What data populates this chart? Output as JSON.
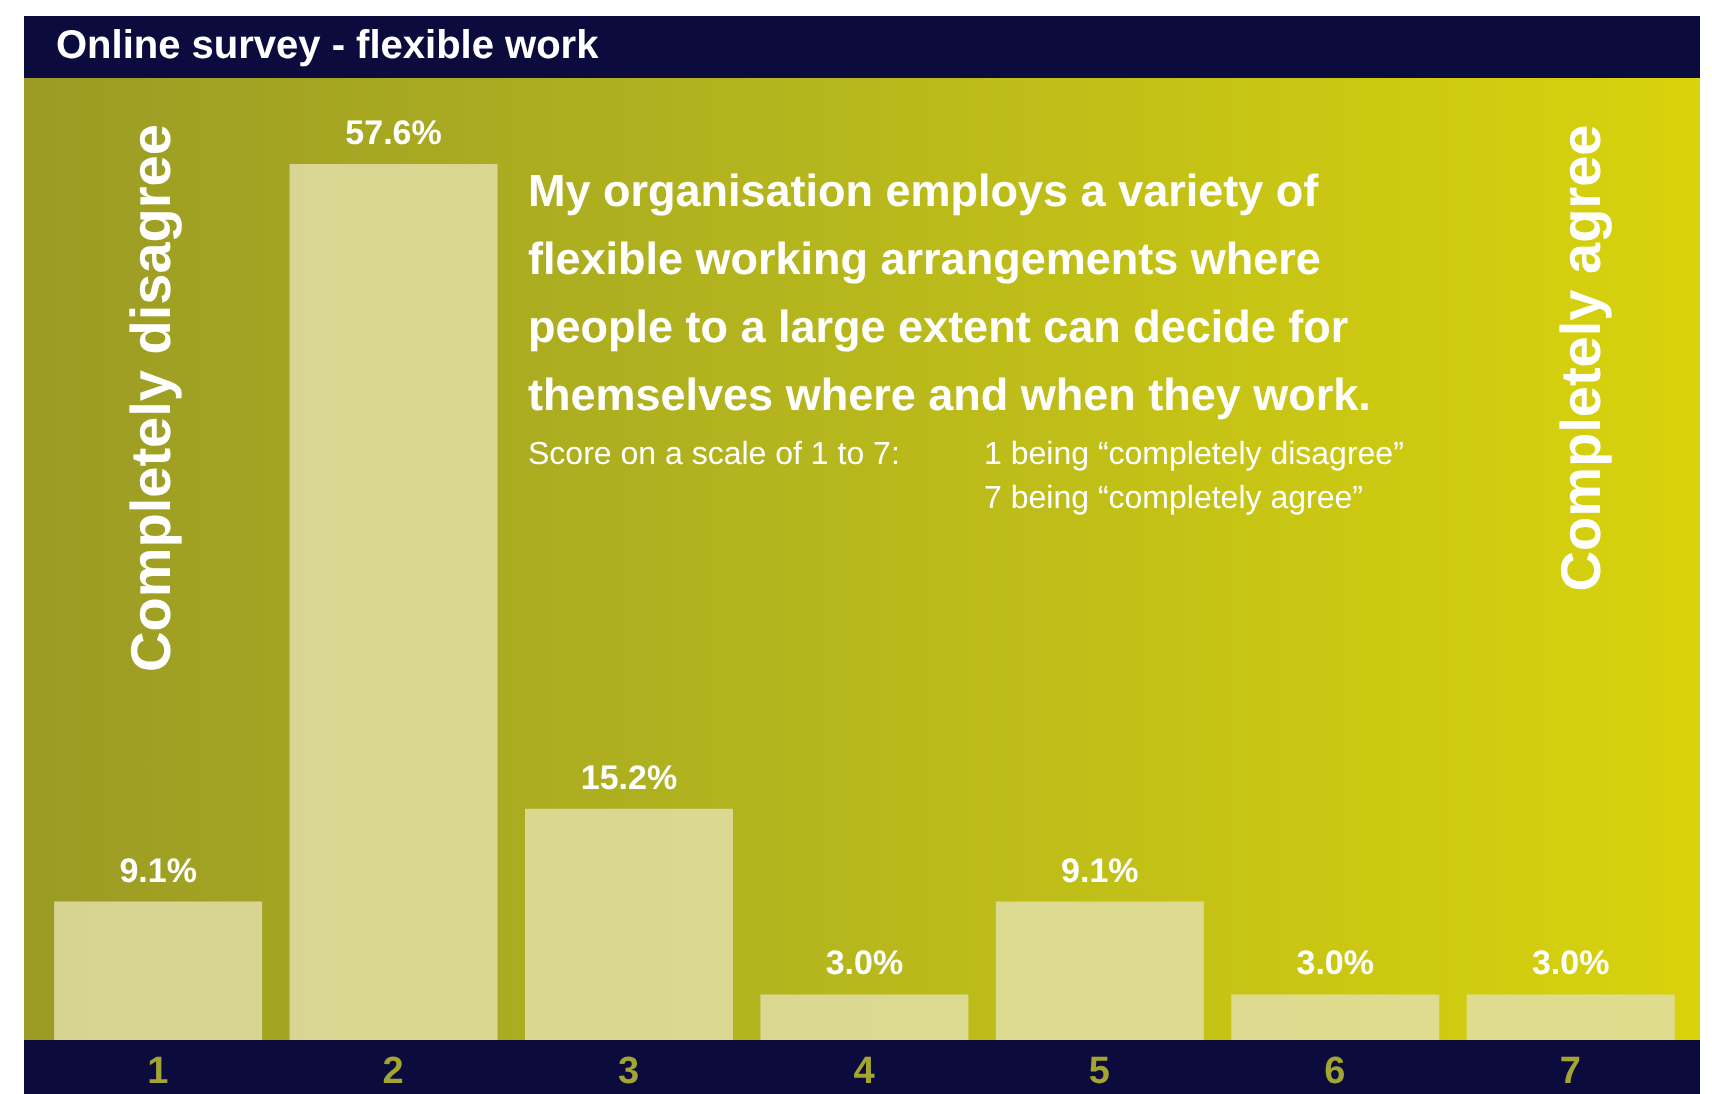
{
  "chart_data": {
    "type": "bar",
    "title": "Online survey - flexible work",
    "categories": [
      "1",
      "2",
      "3",
      "4",
      "5",
      "6",
      "7"
    ],
    "values": [
      9.1,
      57.6,
      15.2,
      3.0,
      9.1,
      3.0,
      3.0
    ],
    "value_labels": [
      "9.1%",
      "57.6%",
      "15.2%",
      "3.0%",
      "9.1%",
      "3.0%",
      "3.0%"
    ],
    "color": "#e2dea6",
    "annotations": [
      "My organisation employs a variety of flexible working arrangements where people to a large extent can decide for themselves where and when they work.",
      "Score on a scale of 1 to 7:",
      "1 being “completely disagree”",
      "7 being “completely agree”",
      "Completely disagree",
      "Completely agree"
    ],
    "grid": false,
    "legend": false
  }
}
